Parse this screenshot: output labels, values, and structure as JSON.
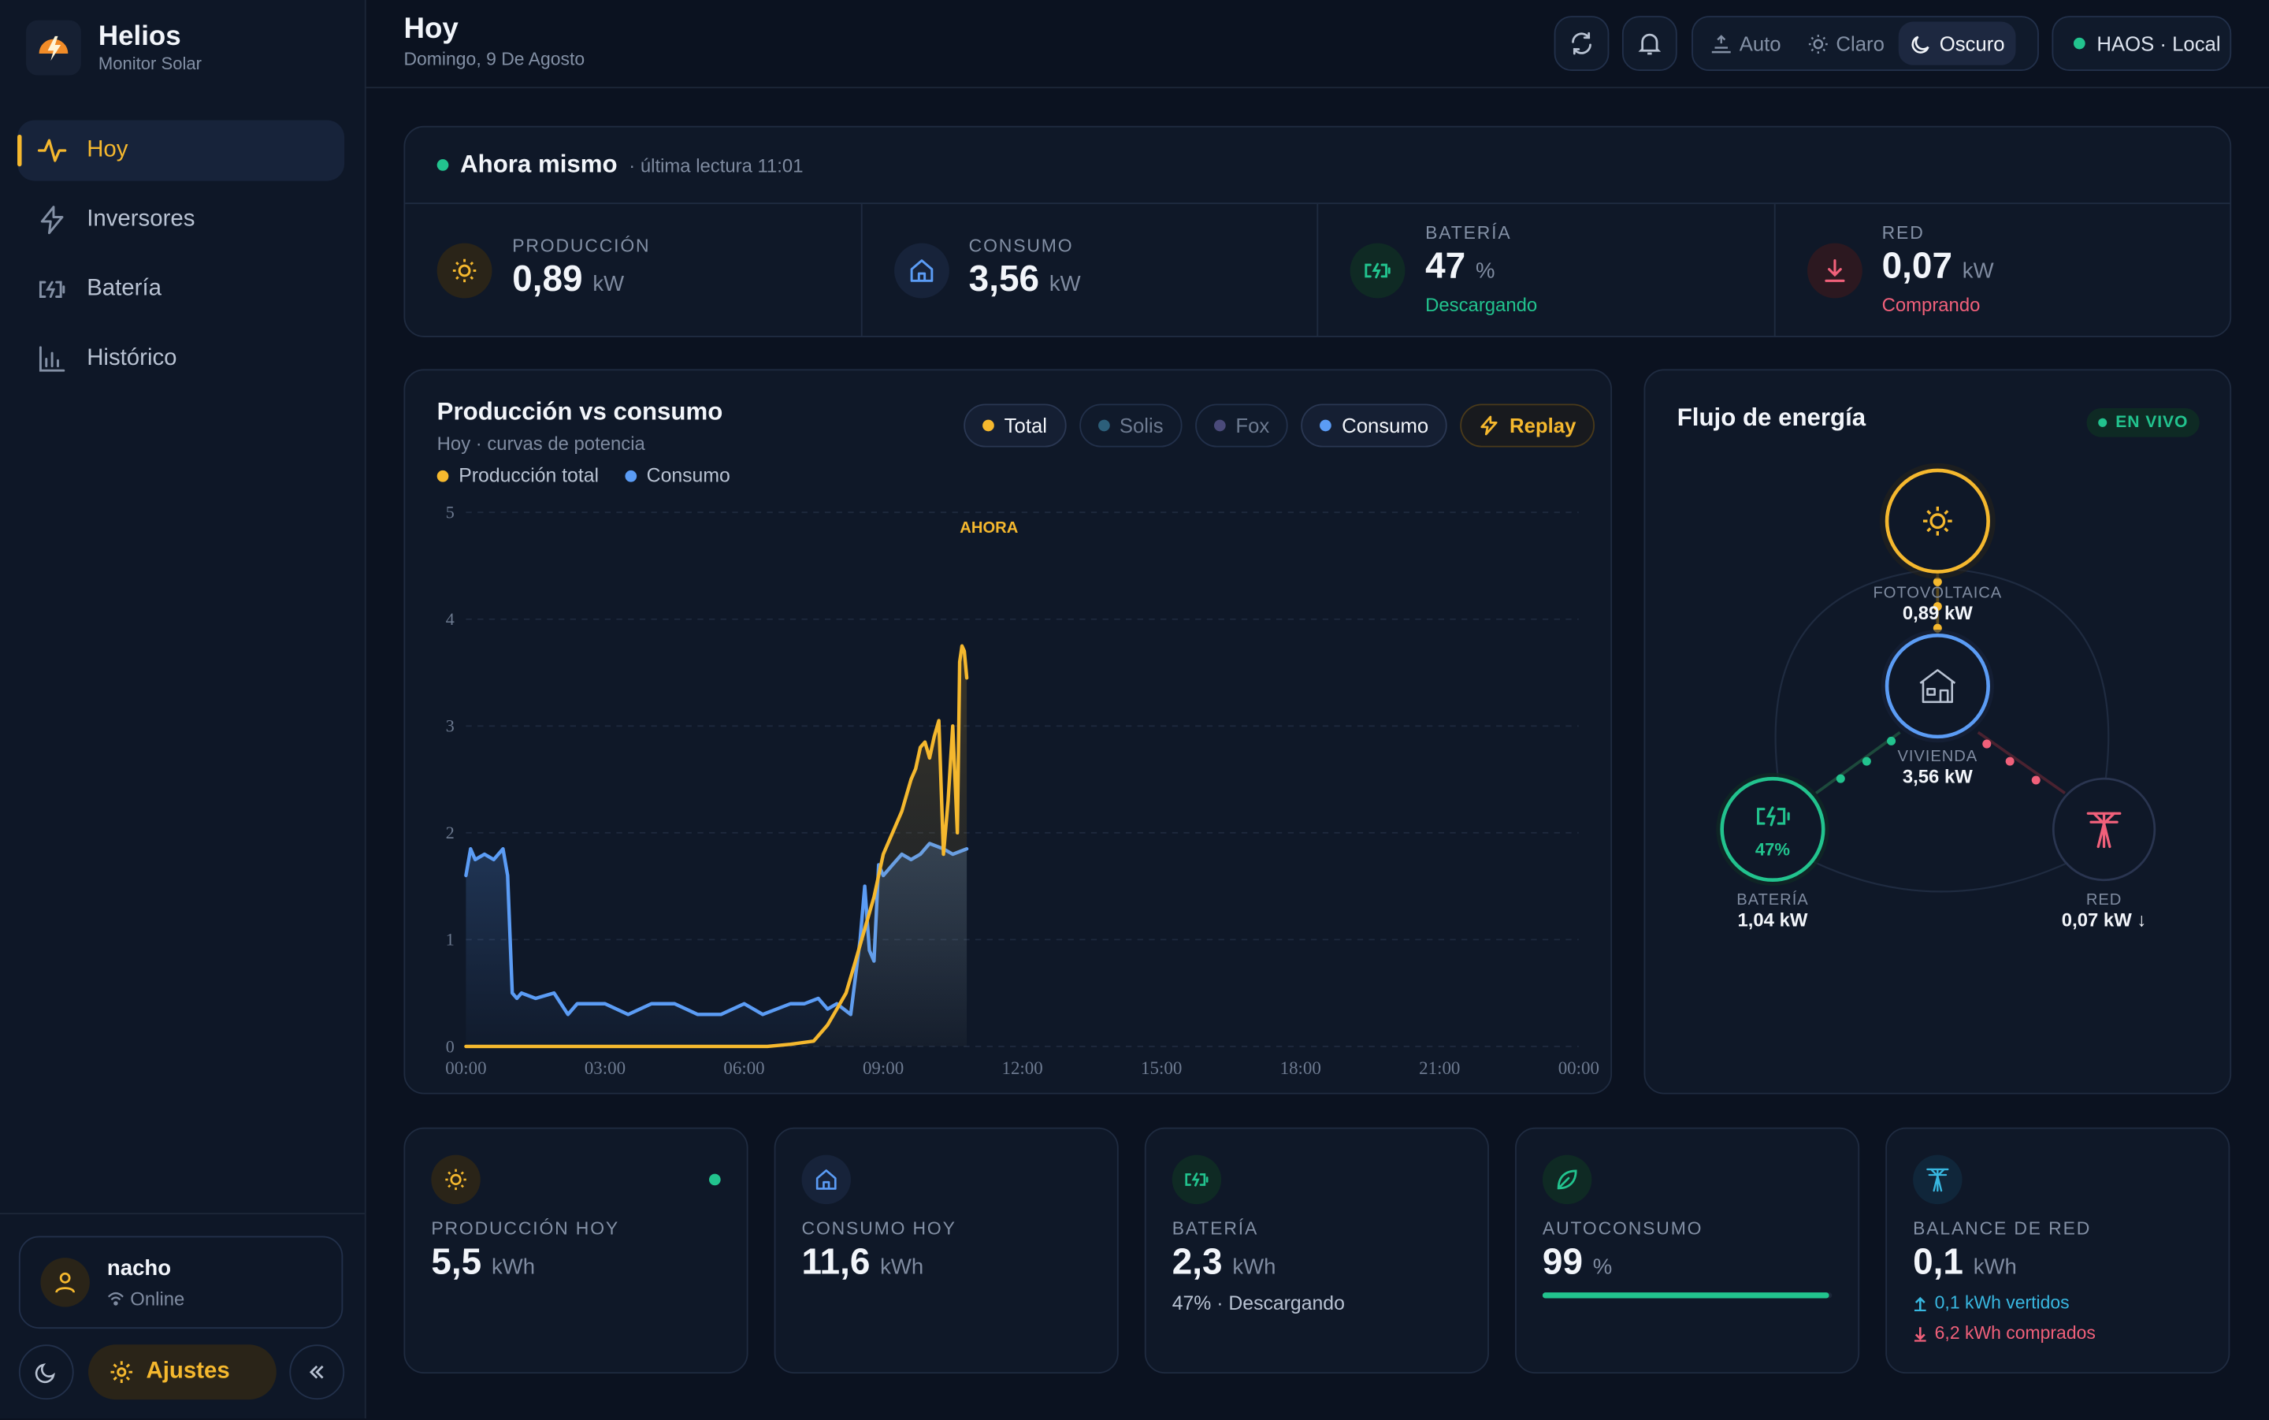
{
  "brand": {
    "title": "Helios",
    "subtitle": "Monitor Solar"
  },
  "nav": {
    "items": [
      {
        "label": "Hoy",
        "icon": "pulse-icon"
      },
      {
        "label": "Inversores",
        "icon": "bolt-icon"
      },
      {
        "label": "Batería",
        "icon": "battery-icon"
      },
      {
        "label": "Histórico",
        "icon": "bar-chart-icon"
      }
    ]
  },
  "user": {
    "name": "nacho",
    "status": "Online"
  },
  "sidebar_bottom": {
    "settings_label": "Ajustes"
  },
  "header": {
    "title": "Hoy",
    "date": "Domingo, 9 De Agosto",
    "theme_options": [
      "Auto",
      "Claro",
      "Oscuro"
    ],
    "theme_selected": "Oscuro",
    "connection": "HAOS · Local"
  },
  "now": {
    "title": "Ahora mismo",
    "subtitle": "· última lectura 11:01",
    "cells": [
      {
        "label": "PRODUCCIÓN",
        "value": "0,89",
        "unit": "kW",
        "note": ""
      },
      {
        "label": "CONSUMO",
        "value": "3,56",
        "unit": "kW",
        "note": ""
      },
      {
        "label": "BATERÍA",
        "value": "47",
        "unit": "%",
        "note": "Descargando"
      },
      {
        "label": "RED",
        "value": "0,07",
        "unit": "kW",
        "note": "Comprando"
      }
    ]
  },
  "chart_panel": {
    "title": "Producción vs consumo",
    "subtitle": "Hoy · curvas de potencia",
    "pills": [
      "Total",
      "Solis",
      "Fox",
      "Consumo",
      "Replay"
    ],
    "legend": [
      "Producción total",
      "Consumo"
    ],
    "now_marker": "AHORA"
  },
  "chart_data": {
    "type": "line",
    "x_ticks": [
      "00:00",
      "03:00",
      "06:00",
      "09:00",
      "12:00",
      "15:00",
      "18:00",
      "21:00",
      "00:00"
    ],
    "ylim": [
      0,
      5
    ],
    "y_ticks": [
      0,
      1,
      2,
      3,
      4,
      5
    ],
    "series": [
      {
        "name": "Producción total",
        "color": "#f5b82e",
        "x": [
          0,
          6.5,
          7.0,
          7.5,
          7.8,
          8.0,
          8.2,
          8.4,
          8.6,
          8.8,
          9.0,
          9.2,
          9.4,
          9.6,
          9.7,
          9.8,
          9.9,
          10.0,
          10.1,
          10.2,
          10.3,
          10.4,
          10.5,
          10.6,
          10.65,
          10.7,
          10.75,
          10.8
        ],
        "y": [
          0,
          0,
          0.02,
          0.05,
          0.2,
          0.35,
          0.5,
          0.8,
          1.1,
          1.4,
          1.8,
          2.0,
          2.2,
          2.5,
          2.6,
          2.8,
          2.85,
          2.7,
          2.9,
          3.05,
          1.8,
          2.3,
          3.0,
          2.0,
          3.6,
          3.75,
          3.7,
          3.45
        ]
      },
      {
        "name": "Consumo",
        "color": "#5b9cf5",
        "x": [
          0,
          0.1,
          0.2,
          0.4,
          0.6,
          0.8,
          0.9,
          1.0,
          1.1,
          1.2,
          1.5,
          1.9,
          2.2,
          2.4,
          2.6,
          3.0,
          3.5,
          4.0,
          4.2,
          4.5,
          5.0,
          5.5,
          6.0,
          6.4,
          7.0,
          7.3,
          7.6,
          7.8,
          8.0,
          8.3,
          8.5,
          8.6,
          8.7,
          8.8,
          8.9,
          9.0,
          9.2,
          9.4,
          9.6,
          9.8,
          10.0,
          10.3,
          10.5,
          10.8
        ],
        "y": [
          1.6,
          1.85,
          1.75,
          1.8,
          1.75,
          1.85,
          1.6,
          0.5,
          0.45,
          0.5,
          0.45,
          0.5,
          0.3,
          0.4,
          0.4,
          0.4,
          0.3,
          0.4,
          0.4,
          0.4,
          0.3,
          0.3,
          0.4,
          0.3,
          0.4,
          0.4,
          0.45,
          0.35,
          0.4,
          0.3,
          1.0,
          1.5,
          0.9,
          0.8,
          1.7,
          1.6,
          1.7,
          1.8,
          1.75,
          1.8,
          1.9,
          1.85,
          1.8,
          1.85
        ]
      }
    ]
  },
  "flow": {
    "title": "Flujo de energía",
    "live": "EN VIVO",
    "pv": {
      "label": "FOTOVOLTAICA",
      "value": "0,89 kW"
    },
    "home": {
      "label": "VIVIENDA",
      "value": "3,56 kW"
    },
    "battery": {
      "label": "BATERÍA",
      "value": "1,04 kW",
      "percent": "47%"
    },
    "grid": {
      "label": "RED",
      "value": "0,07 kW ↓"
    }
  },
  "stats": [
    {
      "label": "PRODUCCIÓN HOY",
      "value": "5,5",
      "unit": "kWh",
      "note": ""
    },
    {
      "label": "CONSUMO HOY",
      "value": "11,6",
      "unit": "kWh",
      "note": ""
    },
    {
      "label": "BATERÍA",
      "value": "2,3",
      "unit": "kWh",
      "note": "47% · Descargando"
    },
    {
      "label": "AUTOCONSUMO",
      "value": "99",
      "unit": "%",
      "note": "",
      "progress": 0.99
    },
    {
      "label": "BALANCE DE RED",
      "value": "0,1",
      "unit": "kWh",
      "exported": "0,1 kWh vertidos",
      "imported": "6,2 kWh comprados"
    }
  ],
  "colors": {
    "accent": "#f5b82e",
    "consumption": "#5b9cf5",
    "battery": "#22c38e",
    "grid": "#f0607a",
    "background": "#0b1220"
  }
}
